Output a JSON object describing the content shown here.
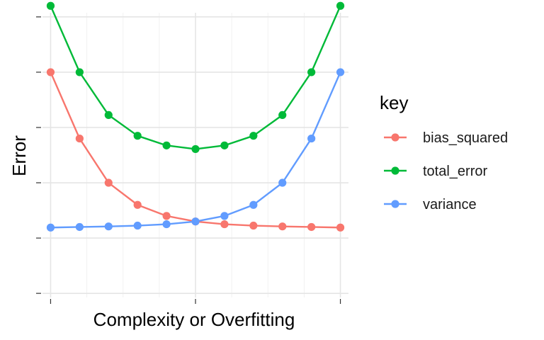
{
  "chart_data": {
    "type": "line",
    "xlabel": "Complexity or Overfitting",
    "ylabel": "Error",
    "x": [
      1,
      2,
      3,
      4,
      5,
      6,
      7,
      8,
      9,
      10,
      11
    ],
    "xlim": [
      0.72,
      11.28
    ],
    "ylim": [
      -0.15,
      10.15
    ],
    "x_major_ticks": [
      1,
      6,
      11
    ],
    "x_minor_ticks": [
      2.25,
      3.5,
      4.75,
      7.25,
      8.5,
      9.75
    ],
    "y_major_ticks": [
      0,
      2,
      4,
      6,
      8,
      10
    ],
    "grid": true,
    "legend": {
      "title": "key",
      "position": "right"
    },
    "series": [
      {
        "name": "bias_squared",
        "color": "#F8766D",
        "values": [
          8.0,
          5.6,
          4.0,
          3.2,
          2.8,
          2.6,
          2.5,
          2.45,
          2.42,
          2.4,
          2.38
        ]
      },
      {
        "name": "total_error",
        "color": "#00BA38",
        "values": [
          10.4,
          8.0,
          6.45,
          5.7,
          5.35,
          5.22,
          5.35,
          5.7,
          6.45,
          8.0,
          10.4
        ]
      },
      {
        "name": "variance",
        "color": "#619CFF",
        "values": [
          2.38,
          2.4,
          2.42,
          2.45,
          2.5,
          2.6,
          2.8,
          3.2,
          4.0,
          5.6,
          8.0
        ]
      }
    ]
  }
}
